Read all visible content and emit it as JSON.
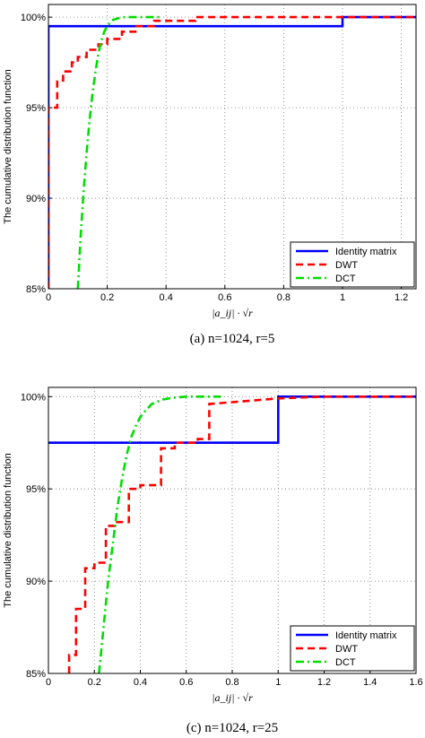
{
  "chart_data": [
    {
      "type": "line",
      "caption": "(a) n=1024, r=5",
      "xlabel": "|a_ij| · √r",
      "ylabel": "The cumulative distribution function",
      "xlim": [
        0,
        1.25
      ],
      "ylim": [
        85,
        100.7
      ],
      "x_ticks": [
        "0",
        "0.2",
        "0.4",
        "0.6",
        "0.8",
        "1",
        "1.2"
      ],
      "y_ticks": [
        "85%",
        "90%",
        "95%",
        "100%"
      ],
      "grid": true,
      "legend_position": "bottom-right",
      "series": [
        {
          "name": "Identity matrix",
          "color": "#0000ff",
          "style": "solid",
          "x": [
            0,
            0,
            1,
            1,
            1.25
          ],
          "y": [
            85,
            99.5,
            99.5,
            100,
            100
          ]
        },
        {
          "name": "DWT",
          "color": "#ff0000",
          "style": "dashed",
          "x": [
            0,
            0,
            0.03,
            0.03,
            0.05,
            0.05,
            0.08,
            0.08,
            0.1,
            0.1,
            0.13,
            0.13,
            0.17,
            0.17,
            0.2,
            0.2,
            0.25,
            0.25,
            0.3,
            0.3,
            0.36,
            0.36,
            0.5,
            0.5,
            0.7,
            0.7,
            1.0,
            1.0,
            1.25
          ],
          "y": [
            85,
            95,
            95,
            96.5,
            96.5,
            97,
            97,
            97.5,
            97.5,
            97.8,
            97.8,
            98.2,
            98.2,
            98.5,
            98.5,
            98.8,
            98.8,
            99.2,
            99.2,
            99.5,
            99.5,
            99.8,
            99.8,
            100,
            100,
            100,
            100,
            100,
            100
          ]
        },
        {
          "name": "DCT",
          "color": "#00dd00",
          "style": "dashdot",
          "x": [
            0.1,
            0.11,
            0.12,
            0.13,
            0.14,
            0.15,
            0.16,
            0.17,
            0.18,
            0.19,
            0.2,
            0.21,
            0.22,
            0.24,
            0.26,
            0.3,
            0.35,
            0.38
          ],
          "y": [
            85,
            88,
            90.5,
            92.5,
            94.3,
            95.8,
            97,
            98,
            98.7,
            99.2,
            99.5,
            99.7,
            99.85,
            99.95,
            100,
            100,
            100,
            100
          ]
        }
      ]
    },
    {
      "type": "line",
      "caption": "(c) n=1024, r=25",
      "xlabel": "|a_ij| · √r",
      "ylabel": "The cumulative distribution function",
      "xlim": [
        0,
        1.6
      ],
      "ylim": [
        85,
        100.5
      ],
      "x_ticks": [
        "0",
        "0.2",
        "0.4",
        "0.6",
        "0.8",
        "1",
        "1.2",
        "1.4",
        "1.6"
      ],
      "y_ticks": [
        "85%",
        "90%",
        "95%",
        "100%"
      ],
      "grid": true,
      "legend_position": "bottom-right",
      "series": [
        {
          "name": "Identity matrix",
          "color": "#0000ff",
          "style": "solid",
          "x": [
            0,
            1,
            1,
            1.6
          ],
          "y": [
            97.5,
            97.5,
            100,
            100
          ]
        },
        {
          "name": "DWT",
          "color": "#ff0000",
          "style": "dashed",
          "x": [
            0.09,
            0.09,
            0.12,
            0.12,
            0.16,
            0.16,
            0.2,
            0.2,
            0.25,
            0.25,
            0.29,
            0.29,
            0.35,
            0.35,
            0.4,
            0.4,
            0.49,
            0.49,
            0.55,
            0.55,
            0.65,
            0.65,
            0.7,
            0.7,
            0.8,
            0.9,
            1.0,
            1.2,
            1.4,
            1.6
          ],
          "y": [
            85,
            86,
            86,
            88.5,
            88.5,
            90.7,
            90.7,
            91,
            91,
            93,
            93,
            93.2,
            93.2,
            95,
            95,
            95.2,
            95.2,
            97.2,
            97.2,
            97.5,
            97.5,
            97.7,
            97.7,
            99.6,
            99.7,
            99.8,
            99.9,
            100,
            100,
            100
          ]
        },
        {
          "name": "DCT",
          "color": "#00dd00",
          "style": "dashdot",
          "x": [
            0.22,
            0.24,
            0.26,
            0.28,
            0.3,
            0.32,
            0.34,
            0.36,
            0.38,
            0.4,
            0.42,
            0.45,
            0.5,
            0.55,
            0.6,
            0.65,
            0.7,
            0.75
          ],
          "y": [
            85,
            87.5,
            90,
            92,
            94,
            95.5,
            96.8,
            97.8,
            98.4,
            98.9,
            99.2,
            99.6,
            99.85,
            99.95,
            100,
            100,
            100,
            100
          ]
        }
      ]
    }
  ]
}
